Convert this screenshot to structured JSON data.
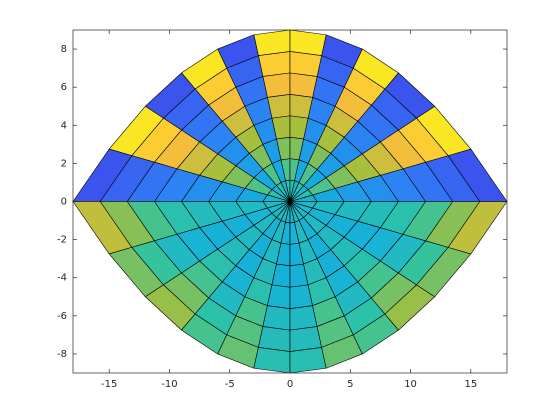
{
  "chart_data": {
    "type": "surface-top",
    "xlim": [
      -18,
      18
    ],
    "ylim": [
      -9,
      9
    ],
    "xticks": [
      -15,
      -10,
      -5,
      0,
      5,
      10,
      15
    ],
    "yticks": [
      -8,
      -6,
      -4,
      -2,
      0,
      2,
      4,
      6,
      8
    ],
    "clim": [
      0,
      1
    ],
    "colormap": [
      "#3e26a8",
      "#4145ec",
      "#2f7ef5",
      "#13aee0",
      "#2ec3a4",
      "#a4bf3d",
      "#fdbe3c",
      "#f9fb15"
    ],
    "z": [
      [
        0.56,
        0.46,
        0.56,
        0.46,
        0.56,
        0.46,
        0.5,
        0.48,
        0.5,
        0.48,
        0.5,
        0.48,
        0.48,
        0.5,
        0.48,
        0.5,
        0.48,
        0.5,
        0.46,
        0.56,
        0.46,
        0.56,
        0.46,
        0.56
      ],
      [
        0.61,
        0.42,
        0.61,
        0.42,
        0.61,
        0.42,
        0.5,
        0.46,
        0.5,
        0.46,
        0.5,
        0.46,
        0.46,
        0.5,
        0.46,
        0.5,
        0.46,
        0.5,
        0.42,
        0.61,
        0.42,
        0.61,
        0.42,
        0.61
      ],
      [
        0.67,
        0.38,
        0.67,
        0.38,
        0.67,
        0.38,
        0.5,
        0.45,
        0.5,
        0.45,
        0.5,
        0.45,
        0.45,
        0.5,
        0.45,
        0.5,
        0.45,
        0.5,
        0.38,
        0.67,
        0.38,
        0.67,
        0.38,
        0.67
      ],
      [
        0.72,
        0.34,
        0.72,
        0.34,
        0.72,
        0.34,
        0.52,
        0.45,
        0.52,
        0.45,
        0.52,
        0.45,
        0.45,
        0.52,
        0.45,
        0.52,
        0.45,
        0.52,
        0.34,
        0.72,
        0.34,
        0.72,
        0.34,
        0.72
      ],
      [
        0.78,
        0.3,
        0.78,
        0.3,
        0.78,
        0.3,
        0.55,
        0.46,
        0.55,
        0.46,
        0.55,
        0.46,
        0.46,
        0.55,
        0.46,
        0.55,
        0.46,
        0.55,
        0.3,
        0.78,
        0.3,
        0.78,
        0.3,
        0.78
      ],
      [
        0.84,
        0.26,
        0.84,
        0.26,
        0.84,
        0.26,
        0.6,
        0.5,
        0.6,
        0.5,
        0.6,
        0.5,
        0.5,
        0.6,
        0.5,
        0.6,
        0.5,
        0.6,
        0.26,
        0.84,
        0.26,
        0.84,
        0.26,
        0.84
      ],
      [
        0.89,
        0.22,
        0.89,
        0.22,
        0.89,
        0.22,
        0.68,
        0.58,
        0.66,
        0.56,
        0.62,
        0.52,
        0.52,
        0.62,
        0.56,
        0.66,
        0.58,
        0.68,
        0.22,
        0.89,
        0.22,
        0.89,
        0.22,
        0.89
      ],
      [
        0.95,
        0.18,
        0.95,
        0.18,
        0.95,
        0.18,
        0.76,
        0.66,
        0.7,
        0.6,
        0.64,
        0.54,
        0.54,
        0.64,
        0.6,
        0.7,
        0.66,
        0.76,
        0.18,
        0.95,
        0.18,
        0.95,
        0.18,
        0.95
      ]
    ]
  }
}
